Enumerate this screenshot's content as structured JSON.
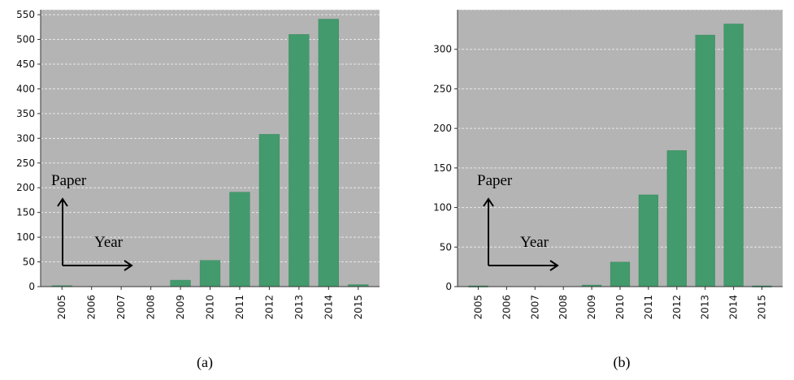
{
  "colors": {
    "plot_background": "#b4b4b4",
    "bar": "#439a6c",
    "bar_edge": "#3a8a60",
    "grid": "#e8e8e8",
    "axis": "#333333",
    "annotation": "#000000"
  },
  "chart_data": [
    {
      "type": "bar",
      "panel_label": "(a)",
      "categories": [
        "2005",
        "2006",
        "2007",
        "2008",
        "2009",
        "2010",
        "2011",
        "2012",
        "2013",
        "2014",
        "2015"
      ],
      "values": [
        2,
        0,
        0,
        0,
        13,
        53,
        191,
        308,
        510,
        541,
        4
      ],
      "yticks": [
        0,
        50,
        100,
        150,
        200,
        250,
        300,
        350,
        400,
        450,
        500,
        550
      ],
      "ylim": [
        0,
        560
      ],
      "grid": true,
      "annotation": {
        "y_arrow_label": "Paper",
        "x_arrow_label": "Year"
      }
    },
    {
      "type": "bar",
      "panel_label": "(b)",
      "categories": [
        "2005",
        "2006",
        "2007",
        "2008",
        "2009",
        "2010",
        "2011",
        "2012",
        "2013",
        "2014",
        "2015"
      ],
      "values": [
        1,
        0,
        0,
        0,
        2,
        31,
        116,
        172,
        318,
        332,
        1
      ],
      "yticks": [
        0,
        50,
        100,
        150,
        200,
        250,
        300
      ],
      "ylim": [
        0,
        350
      ],
      "grid": true,
      "annotation": {
        "y_arrow_label": "Paper",
        "x_arrow_label": "Year"
      }
    }
  ]
}
